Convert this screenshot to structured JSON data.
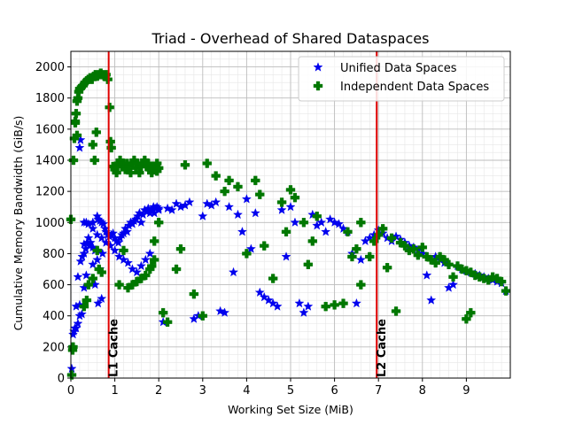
{
  "chart_data": {
    "type": "scatter",
    "title": "Triad - Overhead of Shared Dataspaces",
    "xlabel": "Working Set Size (MiB)",
    "ylabel": "Cumulative Memory Bandwidth (GiB/s)",
    "xlim": [
      0,
      10
    ],
    "ylim": [
      0,
      2100
    ],
    "xticks": [
      0,
      1,
      2,
      3,
      4,
      5,
      6,
      7,
      8,
      9
    ],
    "yticks": [
      0,
      200,
      400,
      600,
      800,
      1000,
      1200,
      1400,
      1600,
      1800,
      2000
    ],
    "grid": true,
    "legend_position": "top-right",
    "vlines": [
      {
        "x": 0.86,
        "label": "L1 Cache",
        "color": "#e00000"
      },
      {
        "x": 6.96,
        "label": "L2 Cache",
        "color": "#e00000"
      }
    ],
    "series": [
      {
        "name": "Unified Data Spaces",
        "color": "#0000ee",
        "marker": "star",
        "points": [
          [
            0.02,
            60
          ],
          [
            0.04,
            200
          ],
          [
            0.05,
            280
          ],
          [
            0.07,
            300
          ],
          [
            0.09,
            320
          ],
          [
            0.12,
            460
          ],
          [
            0.16,
            650
          ],
          [
            0.2,
            400
          ],
          [
            0.22,
            750
          ],
          [
            0.26,
            780
          ],
          [
            0.3,
            800
          ],
          [
            0.34,
            830
          ],
          [
            0.38,
            870
          ],
          [
            0.4,
            900
          ],
          [
            0.45,
            870
          ],
          [
            0.5,
            840
          ],
          [
            0.55,
            820
          ],
          [
            0.6,
            760
          ],
          [
            0.2,
            1480
          ],
          [
            0.22,
            1530
          ],
          [
            0.3,
            860
          ],
          [
            0.35,
            1000
          ],
          [
            0.5,
            1000
          ],
          [
            0.6,
            1040
          ],
          [
            0.62,
            1020
          ],
          [
            0.66,
            1010
          ],
          [
            0.7,
            1000
          ],
          [
            0.74,
            990
          ],
          [
            0.78,
            960
          ],
          [
            0.8,
            940
          ],
          [
            0.84,
            920
          ],
          [
            0.88,
            910
          ],
          [
            0.92,
            920
          ],
          [
            0.96,
            930
          ],
          [
            1.0,
            900
          ],
          [
            1.04,
            880
          ],
          [
            1.08,
            870
          ],
          [
            1.12,
            900
          ],
          [
            1.16,
            920
          ],
          [
            1.2,
            930
          ],
          [
            1.24,
            960
          ],
          [
            1.28,
            940
          ],
          [
            1.32,
            980
          ],
          [
            1.36,
            1000
          ],
          [
            1.4,
            990
          ],
          [
            1.44,
            1010
          ],
          [
            1.48,
            1020
          ],
          [
            1.52,
            1040
          ],
          [
            1.56,
            1060
          ],
          [
            1.6,
            1000
          ],
          [
            1.64,
            1050
          ],
          [
            1.68,
            1080
          ],
          [
            1.72,
            1070
          ],
          [
            1.76,
            1090
          ],
          [
            1.8,
            1060
          ],
          [
            1.84,
            1080
          ],
          [
            1.88,
            1100
          ],
          [
            1.92,
            1090
          ],
          [
            1.96,
            1100
          ],
          [
            2.0,
            1090
          ],
          [
            0.12,
            320
          ],
          [
            0.16,
            350
          ],
          [
            0.2,
            470
          ],
          [
            0.25,
            410
          ],
          [
            0.3,
            580
          ],
          [
            0.35,
            660
          ],
          [
            0.42,
            850
          ],
          [
            0.5,
            730
          ],
          [
            0.55,
            600
          ],
          [
            0.62,
            480
          ],
          [
            0.7,
            510
          ],
          [
            0.3,
            1000
          ],
          [
            0.4,
            990
          ],
          [
            0.5,
            960
          ],
          [
            0.6,
            920
          ],
          [
            0.7,
            900
          ],
          [
            0.8,
            870
          ],
          [
            0.9,
            850
          ],
          [
            1.0,
            820
          ],
          [
            1.1,
            780
          ],
          [
            1.2,
            760
          ],
          [
            1.3,
            740
          ],
          [
            1.4,
            700
          ],
          [
            1.5,
            680
          ],
          [
            1.6,
            720
          ],
          [
            1.7,
            760
          ],
          [
            1.8,
            800
          ],
          [
            1.9,
            1060
          ],
          [
            2.0,
            1080
          ],
          [
            2.1,
            360
          ],
          [
            2.2,
            1090
          ],
          [
            2.3,
            1080
          ],
          [
            2.4,
            1120
          ],
          [
            2.5,
            1100
          ],
          [
            2.6,
            1110
          ],
          [
            2.7,
            1130
          ],
          [
            2.8,
            380
          ],
          [
            2.9,
            400
          ],
          [
            3.0,
            1040
          ],
          [
            3.1,
            1120
          ],
          [
            3.2,
            1110
          ],
          [
            3.3,
            1130
          ],
          [
            3.4,
            430
          ],
          [
            3.5,
            420
          ],
          [
            3.6,
            1100
          ],
          [
            3.7,
            680
          ],
          [
            3.8,
            1050
          ],
          [
            3.9,
            940
          ],
          [
            4.0,
            1150
          ],
          [
            4.1,
            830
          ],
          [
            4.2,
            1060
          ],
          [
            4.3,
            550
          ],
          [
            4.4,
            520
          ],
          [
            4.5,
            500
          ],
          [
            4.6,
            480
          ],
          [
            4.7,
            460
          ],
          [
            4.8,
            1080
          ],
          [
            4.9,
            780
          ],
          [
            5.0,
            1100
          ],
          [
            5.1,
            1000
          ],
          [
            5.2,
            480
          ],
          [
            5.3,
            420
          ],
          [
            5.4,
            460
          ],
          [
            5.5,
            1050
          ],
          [
            5.6,
            980
          ],
          [
            5.7,
            1000
          ],
          [
            5.8,
            940
          ],
          [
            5.9,
            1020
          ],
          [
            6.0,
            1000
          ],
          [
            6.1,
            990
          ],
          [
            6.2,
            960
          ],
          [
            6.3,
            940
          ],
          [
            6.4,
            800
          ],
          [
            6.5,
            480
          ],
          [
            6.6,
            760
          ],
          [
            6.7,
            880
          ],
          [
            6.8,
            900
          ],
          [
            6.9,
            920
          ],
          [
            7.0,
            950
          ],
          [
            7.1,
            930
          ],
          [
            7.2,
            900
          ],
          [
            7.3,
            880
          ],
          [
            7.4,
            910
          ],
          [
            7.5,
            890
          ],
          [
            7.6,
            870
          ],
          [
            7.7,
            850
          ],
          [
            7.8,
            840
          ],
          [
            7.9,
            820
          ],
          [
            8.0,
            800
          ],
          [
            8.1,
            660
          ],
          [
            8.2,
            500
          ],
          [
            8.3,
            780
          ],
          [
            8.4,
            760
          ],
          [
            8.5,
            740
          ],
          [
            8.6,
            580
          ],
          [
            8.7,
            600
          ],
          [
            8.8,
            720
          ],
          [
            8.9,
            700
          ],
          [
            9.0,
            690
          ],
          [
            9.1,
            680
          ],
          [
            9.2,
            670
          ],
          [
            9.3,
            660
          ],
          [
            9.4,
            650
          ],
          [
            9.5,
            640
          ],
          [
            9.6,
            630
          ],
          [
            9.7,
            620
          ],
          [
            9.8,
            610
          ],
          [
            9.9,
            560
          ],
          [
            0.66,
            700
          ],
          [
            0.72,
            800
          ]
        ]
      },
      {
        "name": "Independent Data Spaces",
        "color": "#007700",
        "marker": "plus",
        "points": [
          [
            0.0,
            1020
          ],
          [
            0.02,
            20
          ],
          [
            0.04,
            180
          ],
          [
            0.05,
            200
          ],
          [
            0.06,
            1400
          ],
          [
            0.08,
            1540
          ],
          [
            0.1,
            1640
          ],
          [
            0.12,
            1700
          ],
          [
            0.14,
            1780
          ],
          [
            0.16,
            1800
          ],
          [
            0.18,
            1840
          ],
          [
            0.2,
            1860
          ],
          [
            0.24,
            1870
          ],
          [
            0.28,
            1880
          ],
          [
            0.32,
            1900
          ],
          [
            0.36,
            1910
          ],
          [
            0.4,
            1920
          ],
          [
            0.44,
            1930
          ],
          [
            0.48,
            1920
          ],
          [
            0.52,
            1940
          ],
          [
            0.56,
            1950
          ],
          [
            0.6,
            1940
          ],
          [
            0.64,
            1950
          ],
          [
            0.68,
            1960
          ],
          [
            0.72,
            1950
          ],
          [
            0.76,
            1940
          ],
          [
            0.8,
            1950
          ],
          [
            0.84,
            1920
          ],
          [
            0.88,
            1740
          ],
          [
            0.9,
            1520
          ],
          [
            0.92,
            1480
          ],
          [
            0.96,
            1360
          ],
          [
            1.0,
            1340
          ],
          [
            1.04,
            1320
          ],
          [
            1.08,
            1380
          ],
          [
            1.12,
            1400
          ],
          [
            1.16,
            1360
          ],
          [
            1.2,
            1380
          ],
          [
            1.24,
            1340
          ],
          [
            1.28,
            1380
          ],
          [
            1.32,
            1360
          ],
          [
            1.36,
            1320
          ],
          [
            1.4,
            1380
          ],
          [
            1.44,
            1400
          ],
          [
            1.48,
            1350
          ],
          [
            1.52,
            1380
          ],
          [
            1.56,
            1320
          ],
          [
            1.6,
            1360
          ],
          [
            1.64,
            1380
          ],
          [
            1.68,
            1400
          ],
          [
            1.72,
            1360
          ],
          [
            1.76,
            1380
          ],
          [
            1.8,
            1340
          ],
          [
            1.84,
            1320
          ],
          [
            1.88,
            1360
          ],
          [
            1.92,
            1340
          ],
          [
            1.96,
            1330
          ],
          [
            2.0,
            1350
          ],
          [
            0.1,
            1650
          ],
          [
            0.14,
            1560
          ],
          [
            0.5,
            1500
          ],
          [
            0.54,
            1400
          ],
          [
            0.58,
            1580
          ],
          [
            0.6,
            820
          ],
          [
            0.64,
            700
          ],
          [
            0.7,
            680
          ],
          [
            0.5,
            640
          ],
          [
            0.4,
            600
          ],
          [
            0.36,
            500
          ],
          [
            0.3,
            460
          ],
          [
            1.1,
            600
          ],
          [
            1.2,
            820
          ],
          [
            1.3,
            580
          ],
          [
            1.4,
            600
          ],
          [
            1.5,
            620
          ],
          [
            1.6,
            640
          ],
          [
            1.7,
            660
          ],
          [
            1.8,
            700
          ],
          [
            1.9,
            880
          ],
          [
            2.0,
            1000
          ],
          [
            2.1,
            420
          ],
          [
            2.2,
            360
          ],
          [
            2.4,
            700
          ],
          [
            2.5,
            830
          ],
          [
            2.6,
            1370
          ],
          [
            2.8,
            540
          ],
          [
            3.0,
            400
          ],
          [
            3.1,
            1380
          ],
          [
            3.3,
            1300
          ],
          [
            3.5,
            1200
          ],
          [
            3.6,
            1270
          ],
          [
            3.8,
            1230
          ],
          [
            4.0,
            800
          ],
          [
            4.2,
            1270
          ],
          [
            4.3,
            1180
          ],
          [
            4.4,
            850
          ],
          [
            4.6,
            640
          ],
          [
            4.8,
            1130
          ],
          [
            4.9,
            940
          ],
          [
            5.0,
            1210
          ],
          [
            5.1,
            1160
          ],
          [
            5.3,
            1000
          ],
          [
            5.4,
            730
          ],
          [
            5.5,
            880
          ],
          [
            5.6,
            1040
          ],
          [
            5.8,
            460
          ],
          [
            6.0,
            470
          ],
          [
            6.2,
            480
          ],
          [
            6.4,
            780
          ],
          [
            6.5,
            830
          ],
          [
            6.6,
            600
          ],
          [
            6.8,
            780
          ],
          [
            6.9,
            880
          ],
          [
            7.0,
            920
          ],
          [
            7.1,
            960
          ],
          [
            7.2,
            710
          ],
          [
            7.3,
            900
          ],
          [
            7.4,
            430
          ],
          [
            7.5,
            870
          ],
          [
            7.6,
            850
          ],
          [
            7.7,
            820
          ],
          [
            7.8,
            830
          ],
          [
            7.9,
            790
          ],
          [
            8.0,
            840
          ],
          [
            8.1,
            780
          ],
          [
            8.2,
            760
          ],
          [
            8.3,
            740
          ],
          [
            8.4,
            780
          ],
          [
            8.5,
            760
          ],
          [
            8.6,
            730
          ],
          [
            8.7,
            650
          ],
          [
            8.8,
            720
          ],
          [
            8.9,
            700
          ],
          [
            9.0,
            690
          ],
          [
            9.1,
            680
          ],
          [
            9.2,
            660
          ],
          [
            9.3,
            650
          ],
          [
            9.4,
            640
          ],
          [
            9.5,
            630
          ],
          [
            9.6,
            650
          ],
          [
            9.7,
            640
          ],
          [
            9.8,
            620
          ],
          [
            9.9,
            560
          ],
          [
            9.0,
            380
          ],
          [
            9.1,
            420
          ],
          [
            6.3,
            940
          ],
          [
            6.6,
            1000
          ],
          [
            1.84,
            720
          ],
          [
            1.9,
            760
          ],
          [
            1.96,
            1380
          ]
        ]
      }
    ]
  }
}
